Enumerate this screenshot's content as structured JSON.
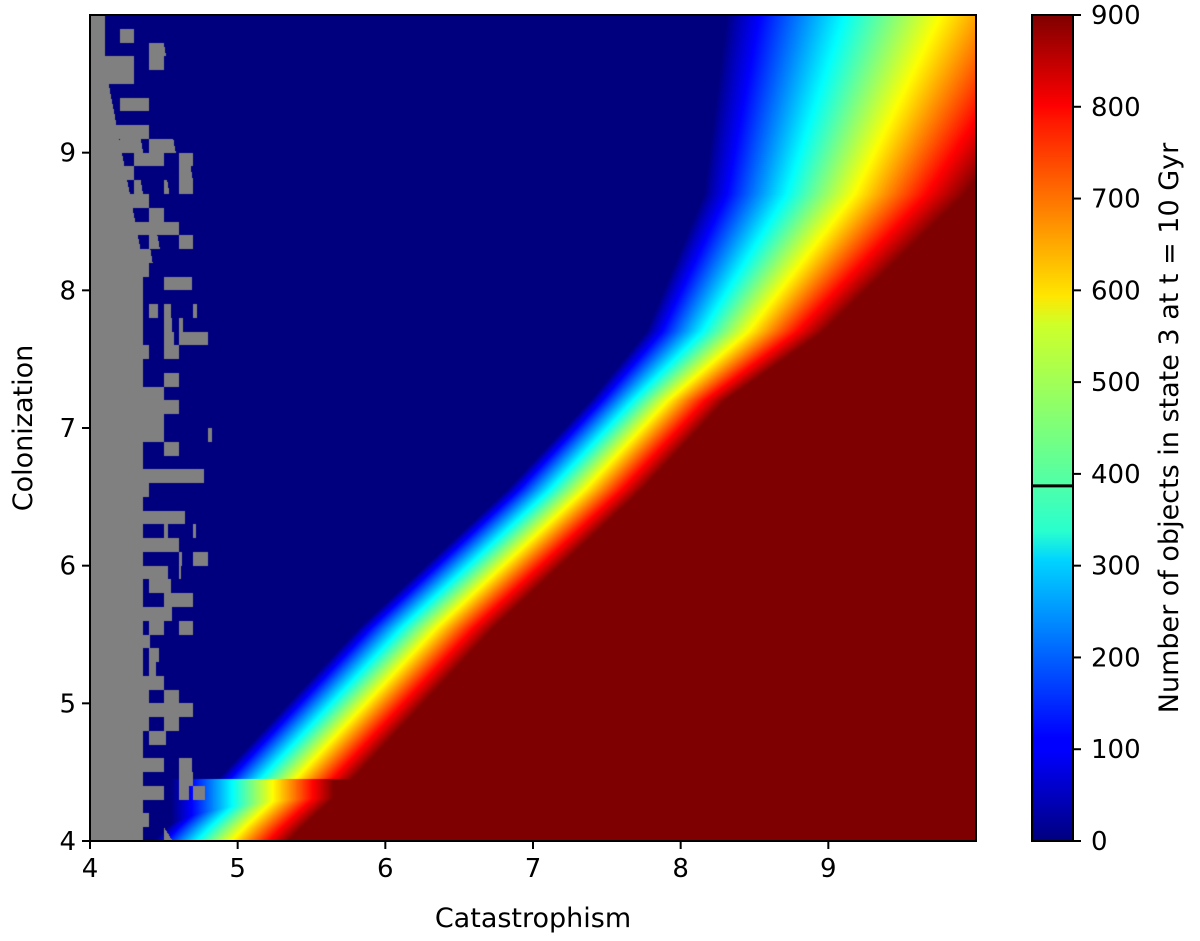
{
  "chart_data": {
    "type": "heatmap",
    "xlabel": "Catastrophism",
    "ylabel": "Colonization",
    "xlim": [
      4,
      10
    ],
    "ylim": [
      4,
      10
    ],
    "x_ticks": [
      4,
      5,
      6,
      7,
      8,
      9
    ],
    "y_ticks": [
      4,
      5,
      6,
      7,
      8,
      9
    ],
    "colorbar": {
      "label": "Number of objects in state 3 at t = 10 Gyr",
      "colormap": "jet",
      "range": [
        0,
        900
      ],
      "ticks": [
        0,
        100,
        200,
        300,
        400,
        500,
        600,
        700,
        800,
        900
      ],
      "marker_line_value": 387
    },
    "no_data_color": "#808080",
    "no_data_region": "Catastrophism below about 4.4-4.9 (ragged edge, widest near Colonization 4.3-8)",
    "field_description": {
      "low_value_region": "upper-left: value near 0 (dark blue)",
      "high_value_region": "lower-right: value near 900 (dark red)",
      "transition_band": "diagonal from (Catastrophism 4.7, Colonization 4.1) to (8.0, 7.7), bending steeply upward to (8.8, 10.0)"
    },
    "transition_path": {
      "catastrophism": [
        4.7,
        5.0,
        6.0,
        7.0,
        8.0,
        8.5,
        8.8
      ],
      "colonization": [
        4.1,
        4.4,
        5.55,
        6.55,
        7.7,
        8.7,
        10.0
      ]
    }
  }
}
